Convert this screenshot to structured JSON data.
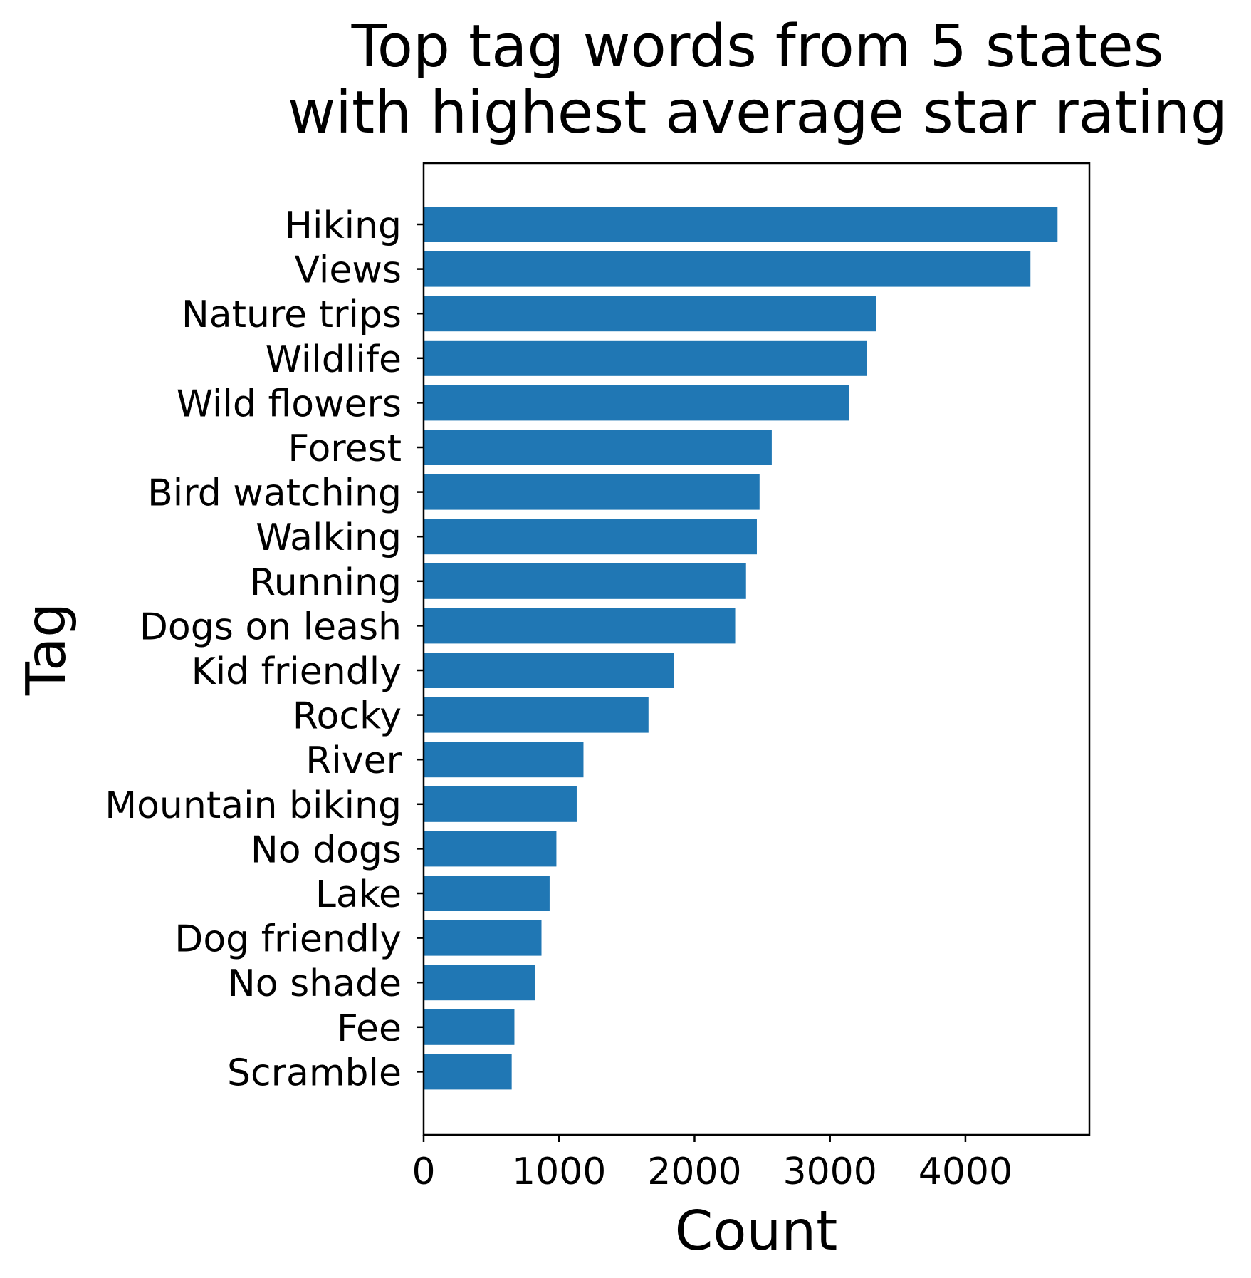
{
  "chart_data": {
    "type": "bar",
    "orientation": "horizontal",
    "title": "Top tag words from 5 states\nwith highest average star rating",
    "title_lines": [
      "Top tag words from 5 states",
      "with highest average star rating"
    ],
    "xlabel": "Count",
    "ylabel": "Tag",
    "categories": [
      "Hiking",
      "Views",
      "Nature trips",
      "Wildlife",
      "Wild flowers",
      "Forest",
      "Bird watching",
      "Walking",
      "Running",
      "Dogs on leash",
      "Kid friendly",
      "Rocky",
      "River",
      "Mountain biking",
      "No dogs",
      "Lake",
      "Dog friendly",
      "No shade",
      "Fee",
      "Scramble"
    ],
    "values": [
      4680,
      4480,
      3340,
      3270,
      3140,
      2570,
      2480,
      2460,
      2380,
      2300,
      1850,
      1660,
      1180,
      1130,
      980,
      930,
      870,
      820,
      670,
      650
    ],
    "xlim": [
      0,
      4915
    ],
    "xticks": [
      0,
      1000,
      2000,
      3000,
      4000
    ],
    "xtick_labels": [
      "0",
      "1000",
      "2000",
      "3000",
      "4000"
    ],
    "grid": false,
    "legend": "none",
    "bar_color": "#2077b4"
  }
}
